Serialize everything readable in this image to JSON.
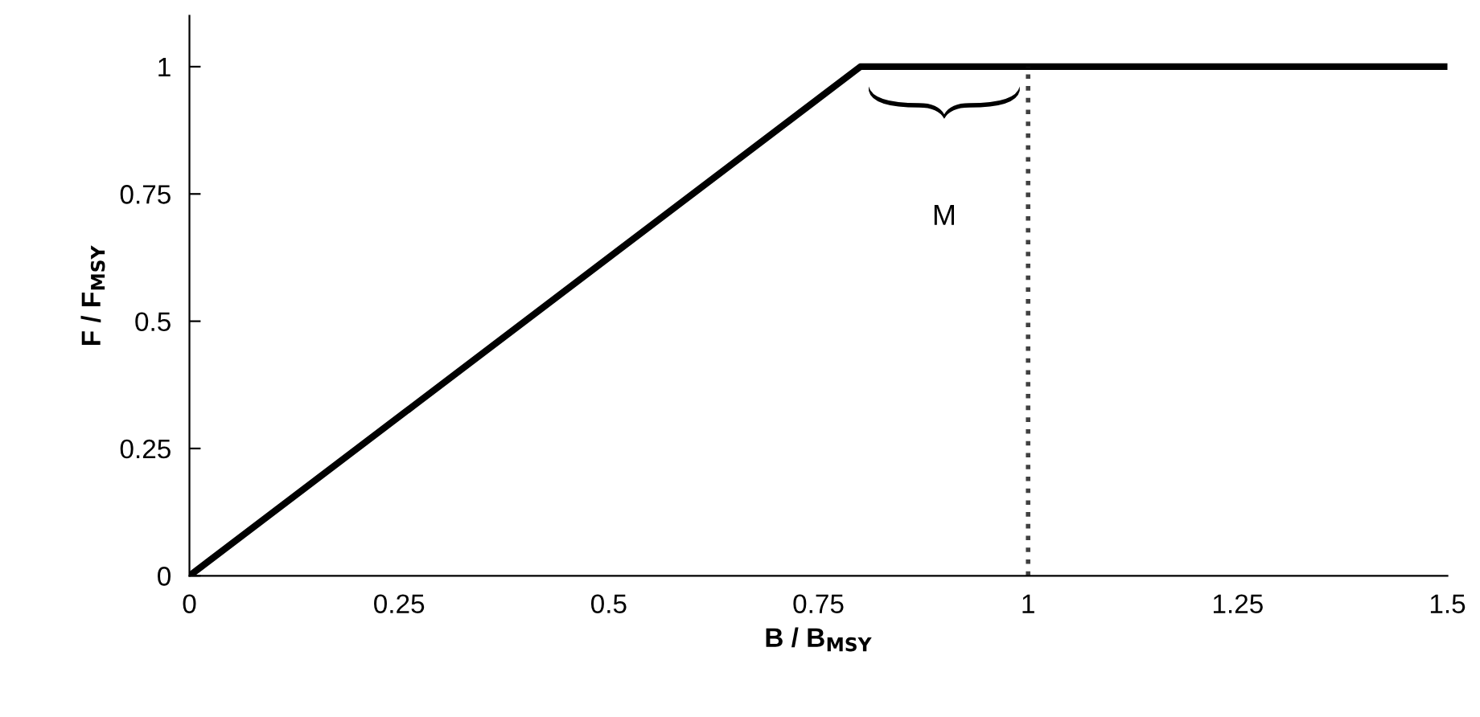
{
  "chart_data": {
    "type": "line",
    "xlabel": "B / B$_{MSY}$",
    "ylabel": "F / F$_{MSY}$",
    "x": [
      0,
      0.8,
      1.5
    ],
    "series": [
      {
        "color": "#000000",
        "values": [
          0,
          1,
          1
        ]
      }
    ],
    "ref_lines": [
      {
        "axis": "x",
        "value": 1,
        "color": "#404040",
        "line_style": "dotted"
      }
    ],
    "annotations": [
      "M"
    ],
    "xlim": [
      0,
      1.5
    ],
    "ylim": [
      0,
      1.1
    ],
    "xticks": [
      0,
      0.25,
      0.5,
      0.75,
      1,
      1.25,
      1.5
    ],
    "yticks": [
      0,
      0.25,
      0.5,
      0.75,
      1
    ],
    "grid": false,
    "legend": false,
    "marker": "none",
    "line_style": "solid"
  }
}
